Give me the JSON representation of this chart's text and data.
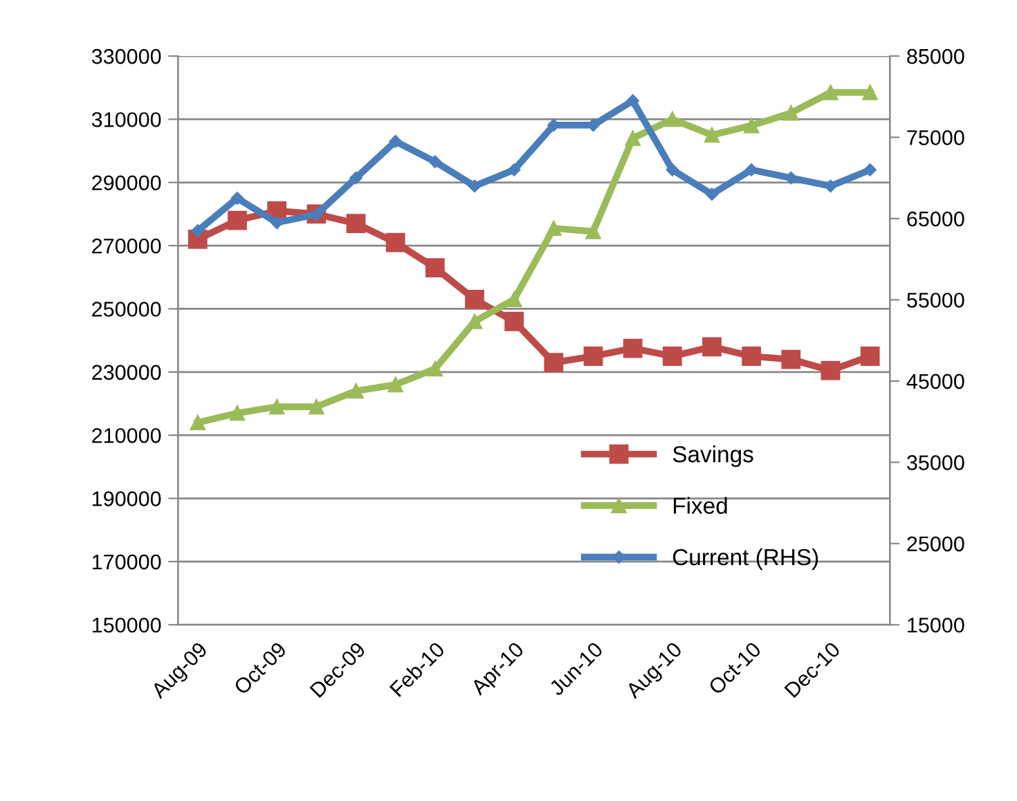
{
  "chart_data": {
    "type": "line",
    "categories": [
      "Aug-09",
      null,
      "Oct-09",
      null,
      "Dec-09",
      null,
      "Feb-10",
      null,
      "Apr-10",
      null,
      "Jun-10",
      null,
      "Aug-10",
      null,
      "Oct-10",
      null,
      "Dec-10",
      null
    ],
    "series": [
      {
        "name": "Savings",
        "color": "#be4b48",
        "marker": "square",
        "values": [
          272000,
          278000,
          281000,
          280000,
          277000,
          271000,
          263000,
          253000,
          246000,
          233000,
          235000,
          237500,
          235000,
          238000,
          235000,
          234000,
          230500,
          235000
        ]
      },
      {
        "name": "Fixed",
        "color": "#9bbb59",
        "marker": "triangle",
        "values": [
          214000,
          217000,
          219000,
          219000,
          224000,
          226000,
          231000,
          246000,
          253000,
          275500,
          274500,
          304000,
          310000,
          305000,
          308000,
          312000,
          318500,
          318500
        ]
      },
      {
        "name": "Current (RHS)",
        "color": "#4a7ebb",
        "marker": "diamond",
        "axis": "y2",
        "values": [
          63500,
          67500,
          64500,
          65500,
          70000,
          74500,
          72000,
          69000,
          71000,
          76500,
          76500,
          79500,
          71000,
          68000,
          71000,
          70000,
          69000,
          71000
        ]
      }
    ],
    "ylim": [
      150000,
      330000
    ],
    "yticks": [
      150000,
      170000,
      190000,
      210000,
      230000,
      250000,
      270000,
      290000,
      310000,
      330000
    ],
    "y2lim": [
      15000,
      85000
    ],
    "y2ticks": [
      15000,
      25000,
      35000,
      45000,
      55000,
      65000,
      75000,
      85000
    ],
    "grid": "y",
    "legend": "lower right",
    "line_style": "solid"
  }
}
